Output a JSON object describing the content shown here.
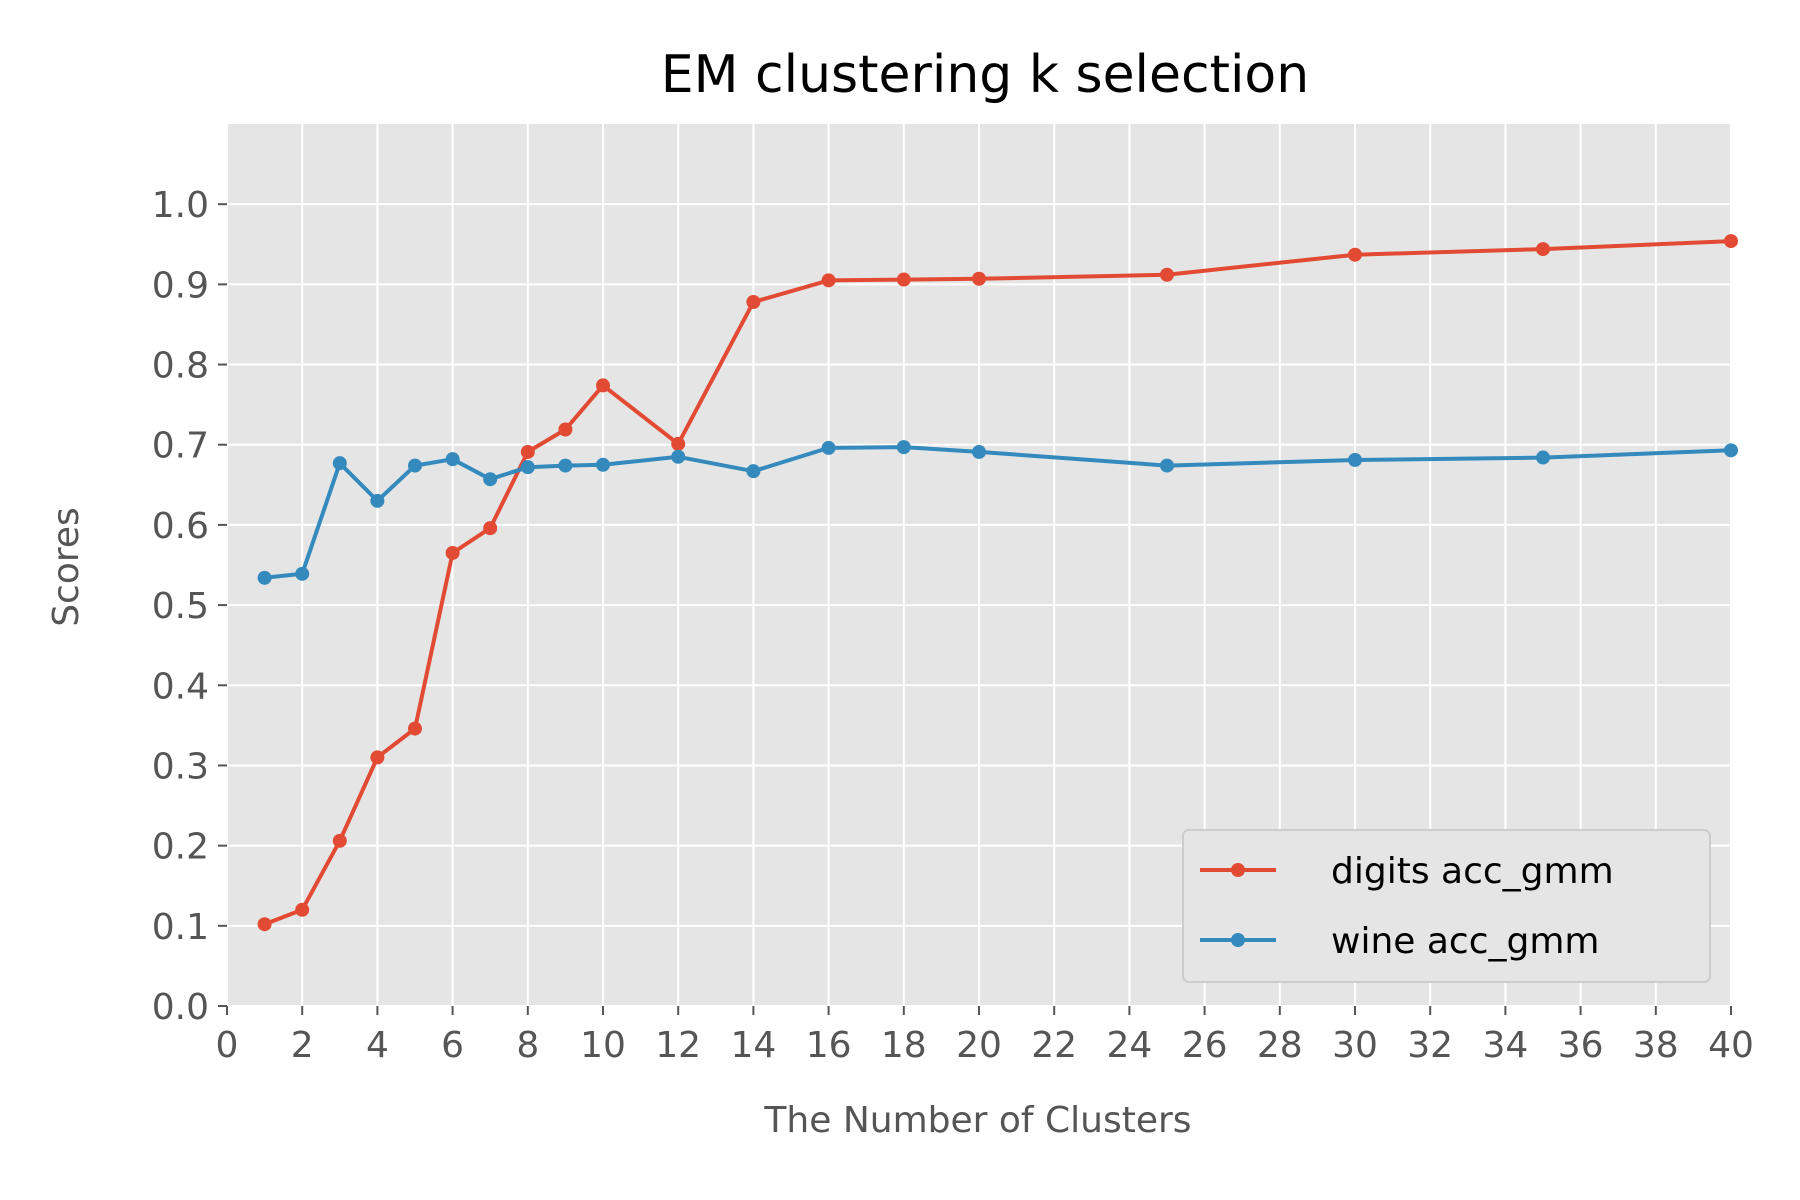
{
  "chart_data": {
    "type": "line",
    "title": "EM clustering k selection",
    "xlabel": "The Number of Clusters",
    "ylabel": "Scores",
    "xlim": [
      0,
      40
    ],
    "ylim": [
      0,
      1.1
    ],
    "xticks": [
      0,
      2,
      4,
      6,
      8,
      10,
      12,
      14,
      16,
      18,
      20,
      22,
      24,
      26,
      28,
      30,
      32,
      34,
      36,
      38,
      40
    ],
    "yticks": [
      0.0,
      0.1,
      0.2,
      0.3,
      0.4,
      0.5,
      0.6,
      0.7,
      0.8,
      0.9,
      1.0
    ],
    "grid": true,
    "legend_position": "lower-right",
    "background_color": "#e5e5e5",
    "series": [
      {
        "name": "digits acc_gmm",
        "color": "#e24a33",
        "x": [
          1,
          2,
          3,
          4,
          5,
          6,
          7,
          8,
          9,
          10,
          12,
          14,
          16,
          18,
          20,
          25,
          30,
          35,
          40
        ],
        "y": [
          0.102,
          0.12,
          0.206,
          0.31,
          0.346,
          0.565,
          0.596,
          0.691,
          0.719,
          0.774,
          0.701,
          0.878,
          0.905,
          0.906,
          0.907,
          0.912,
          0.937,
          0.944,
          0.954
        ]
      },
      {
        "name": "wine acc_gmm",
        "color": "#348abd",
        "x": [
          1,
          2,
          3,
          4,
          5,
          6,
          7,
          8,
          9,
          10,
          12,
          14,
          16,
          18,
          20,
          25,
          30,
          35,
          40
        ],
        "y": [
          0.534,
          0.539,
          0.677,
          0.63,
          0.674,
          0.682,
          0.657,
          0.672,
          0.674,
          0.675,
          0.685,
          0.667,
          0.696,
          0.697,
          0.691,
          0.674,
          0.681,
          0.684,
          0.693
        ]
      }
    ]
  }
}
